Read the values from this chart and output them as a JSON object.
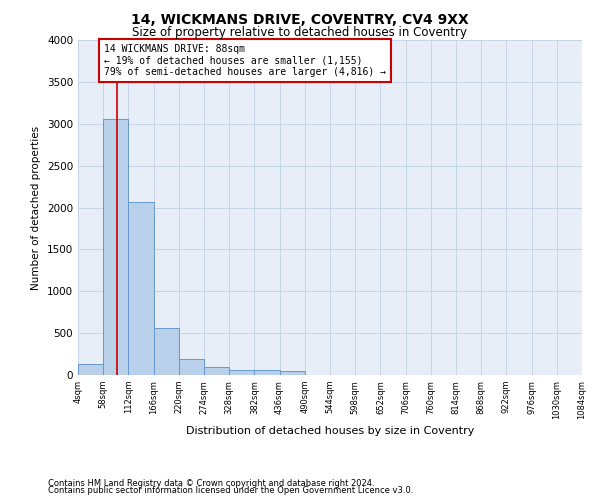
{
  "title1": "14, WICKMANS DRIVE, COVENTRY, CV4 9XX",
  "title2": "Size of property relative to detached houses in Coventry",
  "xlabel": "Distribution of detached houses by size in Coventry",
  "ylabel": "Number of detached properties",
  "footnote1": "Contains HM Land Registry data © Crown copyright and database right 2024.",
  "footnote2": "Contains public sector information licensed under the Open Government Licence v3.0.",
  "bar_edges": [
    4,
    58,
    112,
    166,
    220,
    274,
    328,
    382,
    436,
    490,
    544,
    598,
    652,
    706,
    760,
    814,
    868,
    922,
    976,
    1030,
    1084
  ],
  "bar_heights": [
    130,
    3060,
    2060,
    560,
    195,
    100,
    60,
    60,
    45,
    0,
    0,
    0,
    0,
    0,
    0,
    0,
    0,
    0,
    0,
    0
  ],
  "bar_color": "#b8d0ea",
  "bar_edge_color": "#6699cc",
  "grid_color": "#c8d4e8",
  "property_size": 88,
  "property_line_color": "#cc0000",
  "annotation_line1": "14 WICKMANS DRIVE: 88sqm",
  "annotation_line2": "← 19% of detached houses are smaller (1,155)",
  "annotation_line3": "79% of semi-detached houses are larger (4,816) →",
  "annotation_box_color": "#ffffff",
  "annotation_box_edge_color": "#cc0000",
  "ylim": [
    0,
    4000
  ],
  "yticks": [
    0,
    500,
    1000,
    1500,
    2000,
    2500,
    3000,
    3500,
    4000
  ],
  "bg_color": "#ffffff",
  "plot_bg_color": "#e8eef8"
}
